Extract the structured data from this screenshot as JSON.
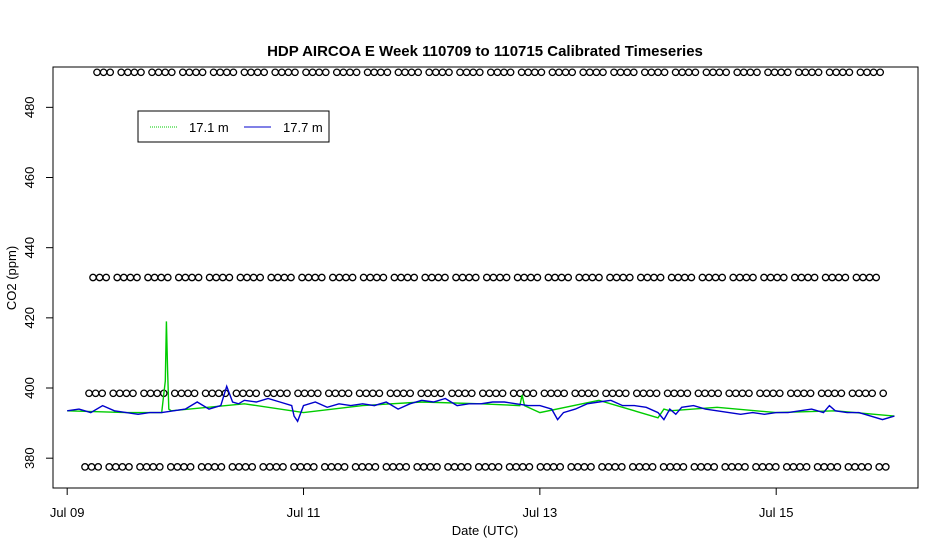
{
  "chart_data": {
    "type": "line",
    "title": "HDP AIRCOA E  Week 110709 to 110715  Calibrated Timeseries",
    "xlabel": "Date (UTC)",
    "ylabel": "CO2 (ppm)",
    "x_tick_labels": [
      "Jul 09",
      "Jul 11",
      "Jul 13",
      "Jul 15"
    ],
    "x_ticks_days": [
      9,
      11,
      13,
      15
    ],
    "xlim_days": [
      8.88,
      16.2
    ],
    "y_ticks": [
      380,
      400,
      420,
      440,
      460,
      480
    ],
    "ylim": [
      371.5,
      491.5
    ],
    "grid": false,
    "legend": {
      "placement": "top-left",
      "entries": [
        {
          "label": "17.1 m",
          "color": "#00cc00"
        },
        {
          "label": "17.7 m",
          "color": "#0000cc"
        }
      ]
    },
    "calibration_marker_levels": [
      377.5,
      398.5,
      431.5,
      490.0
    ],
    "series": [
      {
        "name": "17.1 m",
        "color": "#00cc00",
        "x_days": [
          9.0,
          9.5,
          9.8,
          9.83,
          9.84,
          9.85,
          9.86,
          9.88,
          10.5,
          11.0,
          11.5,
          12.0,
          12.5,
          12.83,
          12.85,
          12.87,
          13.0,
          13.5,
          14.0,
          14.05,
          14.1,
          14.5,
          15.0,
          15.5,
          16.0
        ],
        "values": [
          393.5,
          393.0,
          393.0,
          402.0,
          419.0,
          405.0,
          394.0,
          393.5,
          395.5,
          393.0,
          395.0,
          396.0,
          395.5,
          395.0,
          398.0,
          395.0,
          393.0,
          396.5,
          391.5,
          394.0,
          393.5,
          394.5,
          393.0,
          393.5,
          392.0
        ]
      },
      {
        "name": "17.7 m",
        "color": "#0000cc",
        "x_days": [
          9.0,
          9.1,
          9.2,
          9.3,
          9.4,
          9.5,
          9.6,
          9.7,
          9.8,
          9.9,
          10.0,
          10.1,
          10.2,
          10.3,
          10.35,
          10.4,
          10.45,
          10.5,
          10.6,
          10.7,
          10.8,
          10.9,
          10.92,
          10.95,
          11.0,
          11.1,
          11.2,
          11.3,
          11.4,
          11.5,
          11.6,
          11.7,
          11.8,
          11.9,
          12.0,
          12.1,
          12.2,
          12.3,
          12.4,
          12.5,
          12.6,
          12.7,
          12.8,
          12.9,
          13.0,
          13.1,
          13.15,
          13.2,
          13.3,
          13.4,
          13.5,
          13.6,
          13.7,
          13.8,
          13.9,
          14.0,
          14.05,
          14.1,
          14.15,
          14.2,
          14.3,
          14.4,
          14.5,
          14.6,
          14.7,
          14.8,
          14.9,
          15.0,
          15.1,
          15.2,
          15.3,
          15.4,
          15.45,
          15.5,
          15.6,
          15.7,
          15.8,
          15.9,
          16.0
        ],
        "values": [
          393.5,
          394.0,
          393.0,
          395.0,
          393.5,
          393.0,
          392.5,
          393.0,
          393.0,
          393.5,
          394.0,
          396.0,
          394.0,
          395.0,
          400.5,
          396.0,
          395.5,
          396.5,
          396.0,
          397.0,
          396.0,
          395.0,
          392.0,
          390.5,
          395.0,
          396.0,
          394.5,
          395.5,
          395.0,
          395.5,
          395.0,
          396.0,
          394.0,
          395.5,
          396.5,
          396.0,
          397.0,
          395.0,
          395.5,
          395.5,
          396.0,
          396.0,
          395.5,
          395.0,
          395.0,
          394.0,
          391.0,
          393.0,
          394.0,
          395.5,
          396.0,
          396.5,
          395.0,
          395.0,
          394.5,
          393.0,
          391.0,
          394.0,
          392.5,
          394.5,
          395.0,
          394.0,
          393.5,
          393.0,
          392.5,
          393.0,
          392.5,
          393.0,
          393.0,
          393.5,
          394.0,
          393.0,
          395.0,
          393.5,
          393.0,
          393.0,
          392.0,
          391.0,
          392.0
        ]
      }
    ]
  }
}
